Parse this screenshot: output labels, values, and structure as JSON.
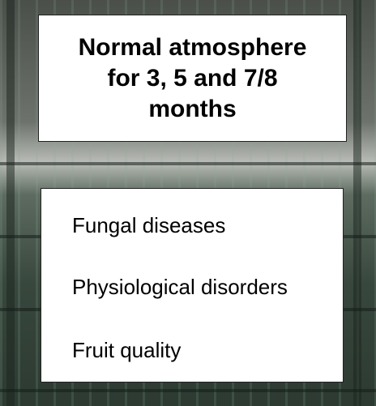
{
  "header": {
    "title_lines": [
      "Normal atmosphere",
      "for 3, 5 and 7/8",
      "months"
    ]
  },
  "list": {
    "items": [
      "Fungal diseases",
      "Physiological disorders",
      "Fruit quality"
    ]
  }
}
